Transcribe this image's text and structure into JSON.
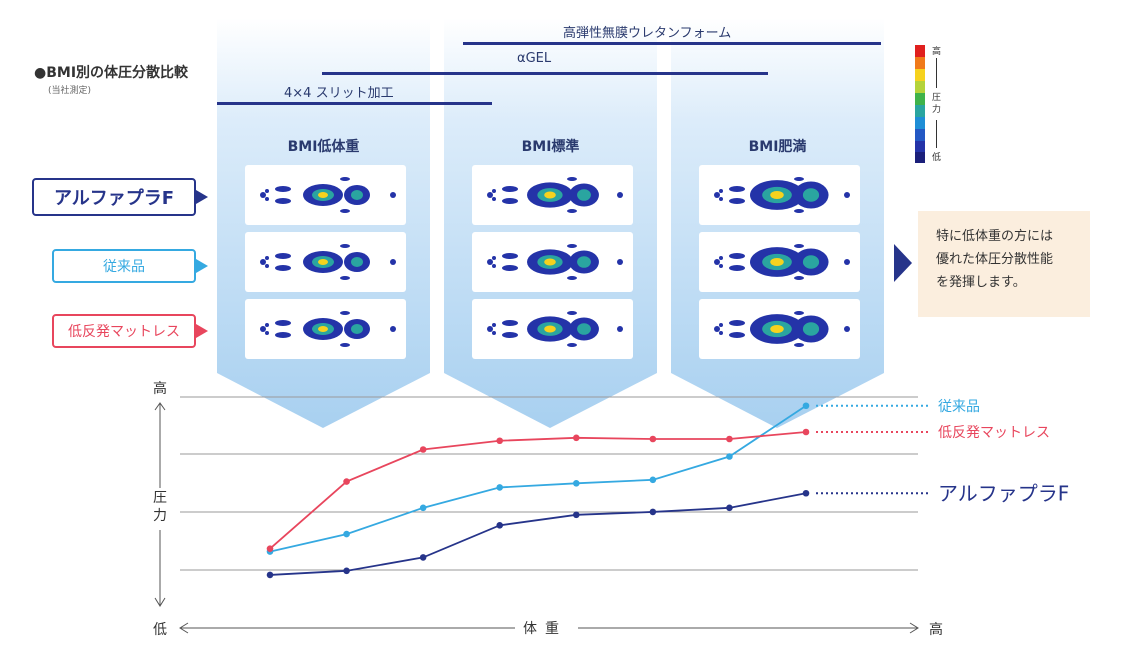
{
  "title": "●BMI別の体圧分散比較",
  "subtitle": "(当社測定)",
  "features": [
    {
      "label": "高弾性無膜ウレタンフォーム"
    },
    {
      "label": "αGEL"
    },
    {
      "label": "4×4 スリット加工"
    }
  ],
  "columns": [
    {
      "label": "BMI低体重"
    },
    {
      "label": "BMI標準"
    },
    {
      "label": "BMI肥満"
    }
  ],
  "rows": [
    {
      "label": "アルファプラF",
      "color": "#26348a"
    },
    {
      "label": "従来品",
      "color": "#35a9e1"
    },
    {
      "label": "低反発マットレス",
      "color": "#e8465d"
    }
  ],
  "scale": {
    "high": "高",
    "mid": "圧力",
    "low": "低"
  },
  "note": {
    "lines": [
      "特に低体重の方には",
      "優れた体圧分散性能",
      "を発揮します。"
    ]
  },
  "chart_data": {
    "type": "line",
    "xlabel": "体重",
    "ylabel": "圧力",
    "x_low_label": "低",
    "x_high_label": "高",
    "y_high_label": "高",
    "xlim": [
      0,
      8
    ],
    "ylim": [
      0,
      4.2
    ],
    "grid": true,
    "series": [
      {
        "name": "従来品",
        "color": "#35a9e1",
        "x": [
          1,
          2,
          3,
          4,
          5,
          6,
          7,
          8
        ],
        "y": [
          0.35,
          0.65,
          1.1,
          1.45,
          1.52,
          1.58,
          1.98,
          2.85
        ]
      },
      {
        "name": "低反発マットレス",
        "color": "#e8465d",
        "x": [
          1,
          2,
          3,
          4,
          5,
          6,
          7,
          8
        ],
        "y": [
          0.4,
          1.55,
          2.1,
          2.25,
          2.3,
          2.28,
          2.28,
          2.4
        ]
      },
      {
        "name": "アルファプラF",
        "color": "#26348a",
        "x": [
          1,
          2,
          3,
          4,
          5,
          6,
          7,
          8
        ],
        "y": [
          -0.05,
          0.02,
          0.25,
          0.8,
          0.98,
          1.03,
          1.1,
          1.35
        ]
      }
    ]
  }
}
